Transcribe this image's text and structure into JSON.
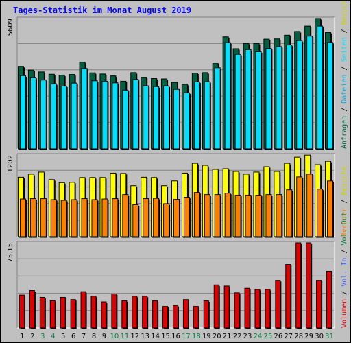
{
  "title": "Tages-Statistik im Monat August 2019",
  "colors": {
    "background": "#c0c0c0",
    "title": "#0000ff",
    "hits_dark": "#006040",
    "files": "#00e0ff",
    "visits": "#ffff00",
    "pages_orange": "#ff8000",
    "kbytes": "#e00000",
    "weekend_label": "#008040",
    "weekday_label": "#000000",
    "separator": "#000000"
  },
  "chart_data": [
    {
      "type": "bar",
      "panel": "top",
      "ymax_label": "5609",
      "ylim": [
        0,
        5609
      ],
      "categories": [
        "1",
        "2",
        "3",
        "4",
        "5",
        "6",
        "7",
        "8",
        "9",
        "10",
        "11",
        "12",
        "13",
        "14",
        "15",
        "16",
        "17",
        "18",
        "19",
        "20",
        "21",
        "22",
        "23",
        "24",
        "25",
        "26",
        "27",
        "28",
        "29",
        "30",
        "31"
      ],
      "series": [
        {
          "name": "Anfragen",
          "values": [
            3550,
            3390,
            3310,
            3210,
            3170,
            3200,
            3730,
            3270,
            3220,
            3140,
            2910,
            3280,
            3080,
            3030,
            3010,
            2860,
            2780,
            3260,
            3280,
            3670,
            4820,
            4310,
            4540,
            4540,
            4720,
            4730,
            4890,
            5050,
            5280,
            5609,
            5010
          ]
        },
        {
          "name": "Dateien",
          "values": [
            3150,
            3080,
            2960,
            2800,
            2700,
            2830,
            3460,
            2930,
            2910,
            2840,
            2530,
            2990,
            2710,
            2680,
            2710,
            2560,
            2410,
            2880,
            2890,
            3490,
            4570,
            4070,
            4270,
            4180,
            4320,
            4400,
            4470,
            4660,
            4850,
            5280,
            4580
          ]
        }
      ],
      "legend": [
        "Anfragen",
        "/",
        "Dateien",
        "/",
        "Seiten",
        "/",
        "Besuche"
      ]
    },
    {
      "type": "bar",
      "panel": "middle",
      "ymax_label": "1202",
      "ylim": [
        0,
        1202
      ],
      "categories": [
        "1",
        "2",
        "3",
        "4",
        "5",
        "6",
        "7",
        "8",
        "9",
        "10",
        "11",
        "12",
        "13",
        "14",
        "15",
        "16",
        "17",
        "18",
        "19",
        "20",
        "21",
        "22",
        "23",
        "24",
        "25",
        "26",
        "27",
        "28",
        "29",
        "30",
        "31"
      ],
      "series": [
        {
          "name": "Besuche",
          "values": [
            875,
            920,
            950,
            840,
            795,
            800,
            870,
            870,
            870,
            935,
            930,
            750,
            875,
            870,
            750,
            820,
            935,
            1080,
            1050,
            990,
            1000,
            960,
            920,
            950,
            1030,
            960,
            1080,
            1170,
            1200,
            1060,
            1110
          ]
        },
        {
          "name": "Rechner",
          "values": [
            555,
            560,
            560,
            545,
            535,
            545,
            560,
            545,
            555,
            560,
            620,
            470,
            560,
            565,
            485,
            550,
            580,
            650,
            620,
            620,
            640,
            610,
            610,
            610,
            620,
            620,
            690,
            880,
            920,
            700,
            820
          ]
        }
      ],
      "legend": [
        "Rechner",
        "/",
        "Besuche"
      ]
    },
    {
      "type": "bar",
      "panel": "bottom",
      "ymax_label": "75.15",
      "ylim": [
        0,
        75.15
      ],
      "categories": [
        "1",
        "2",
        "3",
        "4",
        "5",
        "6",
        "7",
        "8",
        "9",
        "10",
        "11",
        "12",
        "13",
        "14",
        "15",
        "16",
        "17",
        "18",
        "19",
        "20",
        "21",
        "22",
        "23",
        "24",
        "25",
        "26",
        "27",
        "28",
        "29",
        "30",
        "31"
      ],
      "series": [
        {
          "name": "Volumen",
          "values": [
            29,
            33,
            27,
            24,
            27,
            25,
            32,
            28,
            23,
            30,
            24,
            28,
            28,
            24,
            19,
            20,
            25,
            19,
            24,
            38,
            37,
            31,
            35,
            34,
            34,
            42,
            56,
            75.15,
            75.15,
            42,
            50
          ]
        }
      ],
      "legend": [
        "Volumen",
        "/",
        "Vol. In",
        "/",
        "Vol. Out"
      ]
    }
  ],
  "x_axis": {
    "labels": [
      "1",
      "2",
      "3",
      "4",
      "5",
      "6",
      "7",
      "8",
      "9",
      "10",
      "11",
      "12",
      "13",
      "14",
      "15",
      "16",
      "17",
      "18",
      "19",
      "20",
      "21",
      "22",
      "23",
      "24",
      "25",
      "26",
      "27",
      "28",
      "29",
      "30",
      "31"
    ],
    "weekend_days": [
      "3",
      "4",
      "10",
      "11",
      "17",
      "18",
      "24",
      "25",
      "31"
    ]
  }
}
